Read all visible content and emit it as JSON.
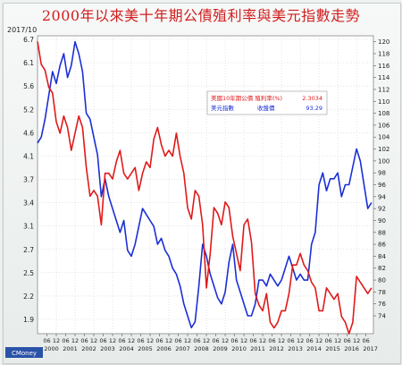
{
  "title": "2000年以來美十年期公債殖利率與美元指數走勢",
  "stamp": "2017/10",
  "brand": "CMoney",
  "colors": {
    "yield": "#e01a1a",
    "dollar": "#1b2fd6",
    "grid": "#c8c8c8",
    "title": "#d11d1d"
  },
  "legend": {
    "rows": [
      {
        "name": "美國10年期公債 殖利率(%)",
        "value": "2.3034",
        "color": "#e01a1a"
      },
      {
        "name": "美元指數",
        "sub": "收盤價",
        "value": "93.29",
        "color": "#1b2fd6"
      }
    ]
  },
  "chart_data": {
    "type": "line",
    "grid": true,
    "legend_position": "top-right",
    "x_range": [
      2000.0,
      2017.9
    ],
    "left_axis": {
      "ticks": [
        6.7,
        6.1,
        5.6,
        5.2,
        4.6,
        4.1,
        3.7,
        3.4,
        3.1,
        2.7,
        2.5,
        2.2,
        1.9
      ],
      "range": [
        1.5,
        6.7
      ],
      "ticks_are_labels": true
    },
    "right_axis": {
      "ticks": [
        120,
        118,
        116,
        114,
        112,
        110,
        108,
        106,
        104,
        102,
        100,
        98,
        96,
        94,
        92,
        90,
        88,
        86,
        84,
        82,
        80,
        78,
        76,
        74
      ],
      "range": [
        71,
        121
      ]
    },
    "x_ticks": [
      {
        "x": 2000.5,
        "month": "06",
        "year": "2000"
      },
      {
        "x": 2001.0,
        "month": "12",
        "year": ""
      },
      {
        "x": 2001.5,
        "month": "06",
        "year": "2001"
      },
      {
        "x": 2002.0,
        "month": "12",
        "year": ""
      },
      {
        "x": 2002.5,
        "month": "06",
        "year": "2002"
      },
      {
        "x": 2003.0,
        "month": "12",
        "year": ""
      },
      {
        "x": 2003.5,
        "month": "06",
        "year": "2003"
      },
      {
        "x": 2004.0,
        "month": "12",
        "year": ""
      },
      {
        "x": 2004.5,
        "month": "06",
        "year": "2004"
      },
      {
        "x": 2005.0,
        "month": "12",
        "year": ""
      },
      {
        "x": 2005.5,
        "month": "06",
        "year": "2005"
      },
      {
        "x": 2006.0,
        "month": "12",
        "year": ""
      },
      {
        "x": 2006.5,
        "month": "06",
        "year": "2006"
      },
      {
        "x": 2007.0,
        "month": "12",
        "year": ""
      },
      {
        "x": 2007.5,
        "month": "06",
        "year": "2007"
      },
      {
        "x": 2008.0,
        "month": "12",
        "year": ""
      },
      {
        "x": 2008.5,
        "month": "06",
        "year": "2008"
      },
      {
        "x": 2009.0,
        "month": "12",
        "year": ""
      },
      {
        "x": 2009.5,
        "month": "06",
        "year": "2009"
      },
      {
        "x": 2010.0,
        "month": "12",
        "year": ""
      },
      {
        "x": 2010.5,
        "month": "06",
        "year": "2010"
      },
      {
        "x": 2011.0,
        "month": "12",
        "year": ""
      },
      {
        "x": 2011.5,
        "month": "06",
        "year": "2011"
      },
      {
        "x": 2012.0,
        "month": "12",
        "year": ""
      },
      {
        "x": 2012.5,
        "month": "06",
        "year": "2012"
      },
      {
        "x": 2013.0,
        "month": "12",
        "year": ""
      },
      {
        "x": 2013.5,
        "month": "06",
        "year": "2013"
      },
      {
        "x": 2014.0,
        "month": "12",
        "year": ""
      },
      {
        "x": 2014.5,
        "month": "06",
        "year": "2014"
      },
      {
        "x": 2015.0,
        "month": "12",
        "year": ""
      },
      {
        "x": 2015.5,
        "month": "06",
        "year": "2015"
      },
      {
        "x": 2016.0,
        "month": "12",
        "year": ""
      },
      {
        "x": 2016.5,
        "month": "06",
        "year": "2016"
      },
      {
        "x": 2017.0,
        "month": "12",
        "year": ""
      },
      {
        "x": 2017.5,
        "month": "06",
        "year": "2017"
      }
    ],
    "series": [
      {
        "name": "美國10年期公債 殖利率(%)",
        "axis": "left",
        "x": [
          2000.0,
          2000.2,
          2000.4,
          2000.6,
          2000.8,
          2001.0,
          2001.2,
          2001.4,
          2001.6,
          2001.8,
          2002.0,
          2002.2,
          2002.4,
          2002.6,
          2002.8,
          2003.0,
          2003.2,
          2003.4,
          2003.6,
          2003.8,
          2004.0,
          2004.2,
          2004.4,
          2004.6,
          2004.8,
          2005.0,
          2005.2,
          2005.4,
          2005.6,
          2005.8,
          2006.0,
          2006.2,
          2006.4,
          2006.6,
          2006.8,
          2007.0,
          2007.2,
          2007.4,
          2007.6,
          2007.8,
          2008.0,
          2008.2,
          2008.4,
          2008.6,
          2008.8,
          2009.0,
          2009.2,
          2009.4,
          2009.6,
          2009.8,
          2010.0,
          2010.2,
          2010.4,
          2010.6,
          2010.8,
          2011.0,
          2011.2,
          2011.4,
          2011.6,
          2011.8,
          2012.0,
          2012.2,
          2012.4,
          2012.6,
          2012.8,
          2013.0,
          2013.2,
          2013.4,
          2013.6,
          2013.8,
          2014.0,
          2014.2,
          2014.4,
          2014.6,
          2014.8,
          2015.0,
          2015.2,
          2015.4,
          2015.6,
          2015.8,
          2016.0,
          2016.2,
          2016.4,
          2016.6,
          2016.8,
          2017.0,
          2017.2,
          2017.4,
          2017.6,
          2017.8
        ],
        "values": [
          6.6,
          6.2,
          6.1,
          5.8,
          5.7,
          5.2,
          5.0,
          5.3,
          5.1,
          4.7,
          5.0,
          5.3,
          5.1,
          4.4,
          3.9,
          4.0,
          3.9,
          3.4,
          4.3,
          4.3,
          4.2,
          4.5,
          4.7,
          4.3,
          4.2,
          4.3,
          4.4,
          4.0,
          4.3,
          4.5,
          4.4,
          4.9,
          5.1,
          4.8,
          4.6,
          4.7,
          4.6,
          5.0,
          4.6,
          4.3,
          3.7,
          3.5,
          4.0,
          3.9,
          3.4,
          2.3,
          2.9,
          3.7,
          3.6,
          3.4,
          3.8,
          3.7,
          3.2,
          2.9,
          2.6,
          3.4,
          3.5,
          3.1,
          2.2,
          2.0,
          1.9,
          2.2,
          1.7,
          1.6,
          1.7,
          1.9,
          1.9,
          2.2,
          2.7,
          2.7,
          2.9,
          2.7,
          2.6,
          2.4,
          2.3,
          1.9,
          1.9,
          2.3,
          2.2,
          2.1,
          2.2,
          1.8,
          1.7,
          1.5,
          1.7,
          2.5,
          2.4,
          2.3,
          2.2,
          2.3
        ]
      },
      {
        "name": "美元指數",
        "axis": "right",
        "x": [
          2000.0,
          2000.2,
          2000.4,
          2000.6,
          2000.8,
          2001.0,
          2001.2,
          2001.4,
          2001.6,
          2001.8,
          2002.0,
          2002.2,
          2002.4,
          2002.6,
          2002.8,
          2003.0,
          2003.2,
          2003.4,
          2003.6,
          2003.8,
          2004.0,
          2004.2,
          2004.4,
          2004.6,
          2004.8,
          2005.0,
          2005.2,
          2005.4,
          2005.6,
          2005.8,
          2006.0,
          2006.2,
          2006.4,
          2006.6,
          2006.8,
          2007.0,
          2007.2,
          2007.4,
          2007.6,
          2007.8,
          2008.0,
          2008.2,
          2008.4,
          2008.6,
          2008.8,
          2009.0,
          2009.2,
          2009.4,
          2009.6,
          2009.8,
          2010.0,
          2010.2,
          2010.4,
          2010.6,
          2010.8,
          2011.0,
          2011.2,
          2011.4,
          2011.6,
          2011.8,
          2012.0,
          2012.2,
          2012.4,
          2012.6,
          2012.8,
          2013.0,
          2013.2,
          2013.4,
          2013.6,
          2013.8,
          2014.0,
          2014.2,
          2014.4,
          2014.6,
          2014.8,
          2015.0,
          2015.2,
          2015.4,
          2015.6,
          2015.8,
          2016.0,
          2016.2,
          2016.4,
          2016.6,
          2016.8,
          2017.0,
          2017.2,
          2017.4,
          2017.6,
          2017.8
        ],
        "values": [
          103,
          104,
          107,
          111,
          115,
          113,
          116,
          118,
          114,
          116,
          120,
          118,
          115,
          108,
          107,
          104,
          101,
          94,
          97,
          94,
          92,
          90,
          88,
          90,
          85,
          84,
          86,
          89,
          92,
          91,
          90,
          89,
          86,
          87,
          85,
          84,
          82,
          81,
          79,
          76,
          74,
          72,
          73,
          79,
          86,
          84,
          81,
          79,
          77,
          76,
          78,
          83,
          86,
          80,
          78,
          76,
          74,
          74,
          76,
          80,
          80,
          79,
          81,
          80,
          79,
          80,
          82,
          84,
          82,
          80,
          81,
          80,
          80,
          86,
          88,
          96,
          98,
          95,
          97,
          97,
          98,
          94,
          96,
          96,
          99,
          102,
          100,
          96,
          92,
          93
        ]
      }
    ]
  }
}
